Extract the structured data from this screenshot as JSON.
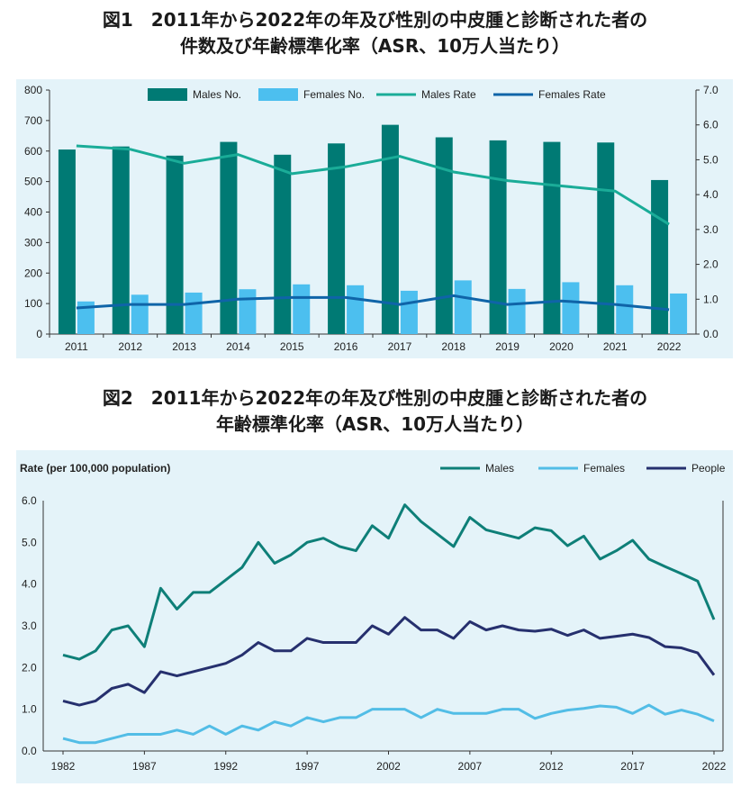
{
  "figure1": {
    "title_line1": "図1　2011年から2022年の年及び性別の中皮腫と診断された者の",
    "title_line2": "件数及び年齢標準化率（ASR、10万人当たり）"
  },
  "figure2": {
    "title_line1": "図2　2011年から2022年の年及び性別の中皮腫と診断された者の",
    "title_line2": "年齢標準化率（ASR、10万人当たり）"
  },
  "colors": {
    "plot_bg": "#e4f3f9",
    "males_bar": "#007a74",
    "females_bar": "#4cbfef",
    "males_rate": "#1aac98",
    "females_rate": "#0f64a8",
    "f2_males": "#0e7f78",
    "f2_females": "#52bde6",
    "f2_people": "#26306e"
  },
  "chart_data": [
    {
      "type": "bar",
      "categories": [
        "2011",
        "2012",
        "2013",
        "2014",
        "2015",
        "2016",
        "2017",
        "2018",
        "2019",
        "2020",
        "2021",
        "2022"
      ],
      "series": [
        {
          "name": "Males No.",
          "kind": "bar",
          "axis": "left",
          "values": [
            605,
            615,
            585,
            630,
            588,
            625,
            686,
            645,
            635,
            630,
            628,
            505
          ]
        },
        {
          "name": "Females No.",
          "kind": "bar",
          "axis": "left",
          "values": [
            107,
            129,
            136,
            147,
            163,
            160,
            142,
            176,
            148,
            170,
            160,
            133
          ]
        },
        {
          "name": "Males Rate",
          "kind": "line",
          "axis": "right",
          "values": [
            5.4,
            5.3,
            4.9,
            5.15,
            4.6,
            4.8,
            5.1,
            4.65,
            4.4,
            4.25,
            4.1,
            3.15
          ]
        },
        {
          "name": "Females Rate",
          "kind": "line",
          "axis": "right",
          "values": [
            0.75,
            0.85,
            0.85,
            1.0,
            1.05,
            1.05,
            0.85,
            1.1,
            0.85,
            0.95,
            0.85,
            0.7
          ]
        }
      ],
      "ylim": [
        0,
        800
      ],
      "yticks": [
        "0",
        "100",
        "200",
        "300",
        "400",
        "500",
        "600",
        "700",
        "800"
      ],
      "y2lim": [
        0,
        7
      ],
      "y2ticks": [
        "0.0",
        "1.0",
        "2.0",
        "3.0",
        "4.0",
        "5.0",
        "6.0",
        "7.0"
      ],
      "legend_position": "top",
      "grid": false
    },
    {
      "type": "line",
      "ylabel": "Rate (per 100,000 population)",
      "x": [
        1982,
        1983,
        1984,
        1985,
        1986,
        1987,
        1988,
        1989,
        1990,
        1991,
        1992,
        1993,
        1994,
        1995,
        1996,
        1997,
        1998,
        1999,
        2000,
        2001,
        2002,
        2003,
        2004,
        2005,
        2006,
        2007,
        2008,
        2009,
        2010,
        2011,
        2012,
        2013,
        2014,
        2015,
        2016,
        2017,
        2018,
        2019,
        2020,
        2021,
        2022
      ],
      "series": [
        {
          "name": "Males",
          "values": [
            2.3,
            2.2,
            2.4,
            2.9,
            3.0,
            2.5,
            3.9,
            3.4,
            3.8,
            3.8,
            4.1,
            4.4,
            5.0,
            4.5,
            4.7,
            5.0,
            5.1,
            4.9,
            4.8,
            5.4,
            5.1,
            5.9,
            5.5,
            5.2,
            4.9,
            5.6,
            5.3,
            5.2,
            5.1,
            5.35,
            5.28,
            4.92,
            5.15,
            4.6,
            4.8,
            5.05,
            4.6,
            4.42,
            4.25,
            4.07,
            3.15
          ]
        },
        {
          "name": "Females",
          "values": [
            0.3,
            0.2,
            0.2,
            0.3,
            0.4,
            0.4,
            0.4,
            0.5,
            0.4,
            0.6,
            0.4,
            0.6,
            0.5,
            0.7,
            0.6,
            0.8,
            0.7,
            0.8,
            0.8,
            1.0,
            1.0,
            1.0,
            0.8,
            1.0,
            0.9,
            0.9,
            0.9,
            1.0,
            1.0,
            0.78,
            0.9,
            0.98,
            1.02,
            1.08,
            1.05,
            0.9,
            1.1,
            0.88,
            0.98,
            0.88,
            0.72
          ]
        },
        {
          "name": "People",
          "values": [
            1.2,
            1.1,
            1.2,
            1.5,
            1.6,
            1.4,
            1.9,
            1.8,
            1.9,
            2.0,
            2.1,
            2.3,
            2.6,
            2.4,
            2.4,
            2.7,
            2.6,
            2.6,
            2.6,
            3.0,
            2.8,
            3.2,
            2.9,
            2.9,
            2.7,
            3.1,
            2.9,
            3.0,
            2.9,
            2.87,
            2.92,
            2.77,
            2.9,
            2.7,
            2.75,
            2.8,
            2.72,
            2.5,
            2.47,
            2.35,
            1.82
          ]
        }
      ],
      "ylim": [
        0,
        6
      ],
      "yticks": [
        "0.0",
        "1.0",
        "2.0",
        "3.0",
        "4.0",
        "5.0",
        "6.0"
      ],
      "xticks": [
        "1982",
        "1987",
        "1992",
        "1997",
        "2002",
        "2007",
        "2012",
        "2017",
        "2022"
      ],
      "legend_position": "top-right",
      "grid": false
    }
  ]
}
